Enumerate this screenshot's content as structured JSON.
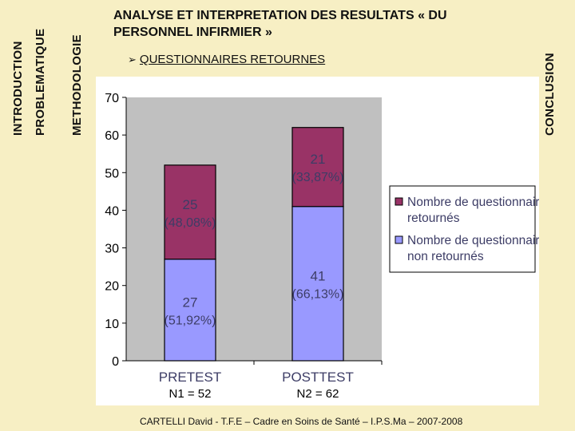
{
  "nav": {
    "introduction": "INTRODUCTION",
    "problematique": "PROBLEMATIQUE",
    "methodologie": "METHODOLOGIE",
    "conclusion": "CONCLUSION"
  },
  "title": "ANALYSE ET INTERPRETATION DES RESULTATS « DU PERSONNEL INFIRMIER »",
  "subtitle": {
    "bullet_icon": "arrow-bullet-icon",
    "text": "QUESTIONNAIRES RETOURNES"
  },
  "footer": "CARTELLI David - T.F.E – Cadre en Soins de Santé – I.P.S.Ma – 2007-2008",
  "chart_data": {
    "type": "bar",
    "stacked": true,
    "categories": [
      "PRETEST",
      "POSTTEST"
    ],
    "category_notes": [
      "N1 = 52",
      "N2 = 62"
    ],
    "series": [
      {
        "name": "Nombre de questionnaires non retournés",
        "values": [
          27,
          41
        ],
        "labels": [
          "(51,92%)",
          "(66,13%)"
        ],
        "color": "#9999ff"
      },
      {
        "name": "Nombre de questionnaires retournés",
        "values": [
          25,
          21
        ],
        "labels": [
          "(48,08%)",
          "(33,87%)"
        ],
        "color": "#993366"
      }
    ],
    "legend_order": [
      1,
      0
    ],
    "yticks": [
      0,
      10,
      20,
      30,
      40,
      50,
      60,
      70
    ],
    "ylim": [
      0,
      70
    ],
    "plot_background": "#c0c0c0",
    "label_color": "#3d3d66",
    "legend_placement": "right"
  }
}
